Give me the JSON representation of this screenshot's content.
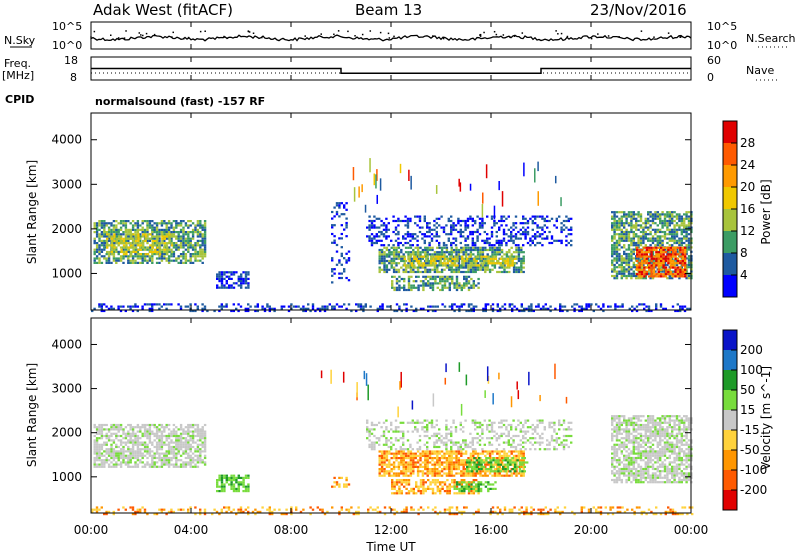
{
  "header": {
    "title": "Adak West (fitACF)",
    "beam": "Beam 13",
    "date": "23/Nov/2016"
  },
  "noise_panel": {
    "left_label": "N.Sky",
    "right_label": "N.Search",
    "tick_top": "10^5",
    "tick_bottom": "10^0"
  },
  "freq_panel": {
    "left_label_top": "Freq.",
    "left_label_units": "[MHz]",
    "left_ticks": [
      "18",
      "8"
    ],
    "right_label": "Nave",
    "right_ticks": [
      "60",
      "0"
    ],
    "cpid_label": "CPID",
    "cpid_text": "normalsound (fast) -157 RF"
  },
  "x_axis": {
    "label": "Time UT",
    "ticks": [
      "00:00",
      "04:00",
      "08:00",
      "12:00",
      "16:00",
      "20:00",
      "00:00"
    ]
  },
  "chart_data": [
    {
      "type": "heatmap",
      "id": "power",
      "ylabel": "Slant Range [km]",
      "yticks": [
        1000,
        2000,
        3000,
        4000
      ],
      "ylim": [
        180,
        4600
      ],
      "xlim_hours": [
        0,
        24
      ],
      "colorbar": {
        "label": "Power [dB]",
        "ticks": [
          "28",
          "24",
          "20",
          "16",
          "12",
          "8",
          "4"
        ],
        "colors": [
          "#e00000",
          "#ff5a00",
          "#ff9a00",
          "#f0c800",
          "#a8c43c",
          "#3c9c64",
          "#1e5aa0",
          "#0000ff"
        ]
      },
      "regions": [
        {
          "t0": 0.1,
          "t1": 4.6,
          "r0": 1250,
          "r1": 2200,
          "level": "mid",
          "density": 0.72
        },
        {
          "t0": 0.6,
          "t1": 3.2,
          "r0": 1450,
          "r1": 1900,
          "level": "high",
          "density": 0.55
        },
        {
          "t0": 5.0,
          "t1": 6.3,
          "r0": 700,
          "r1": 1050,
          "level": "low",
          "density": 0.7
        },
        {
          "t0": 9.6,
          "t1": 10.3,
          "r0": 800,
          "r1": 2600,
          "level": "low",
          "density": 0.25
        },
        {
          "t0": 11.0,
          "t1": 19.2,
          "r0": 1650,
          "r1": 2300,
          "level": "low",
          "density": 0.35
        },
        {
          "t0": 11.5,
          "t1": 17.3,
          "r0": 1050,
          "r1": 1600,
          "level": "mid",
          "density": 0.75
        },
        {
          "t0": 12.5,
          "t1": 17.0,
          "r0": 1200,
          "r1": 1400,
          "level": "high",
          "density": 0.55
        },
        {
          "t0": 12.0,
          "t1": 15.5,
          "r0": 650,
          "r1": 950,
          "level": "mid",
          "density": 0.6
        },
        {
          "t0": 20.8,
          "t1": 24.0,
          "r0": 900,
          "r1": 2400,
          "level": "mid",
          "density": 0.72
        },
        {
          "t0": 21.8,
          "t1": 23.8,
          "r0": 950,
          "r1": 1600,
          "level": "peak",
          "density": 0.8
        },
        {
          "t0": 0.0,
          "t1": 24.0,
          "r0": 180,
          "r1": 330,
          "level": "low",
          "density": 0.35
        }
      ]
    },
    {
      "type": "heatmap",
      "id": "velocity",
      "ylabel": "Slant Range [km]",
      "yticks": [
        1000,
        2000,
        3000,
        4000
      ],
      "ylim": [
        180,
        4600
      ],
      "xlim_hours": [
        0,
        24
      ],
      "colorbar": {
        "label": "Velocity [m s^-1]",
        "ticks": [
          "200",
          "100",
          "50",
          "15",
          "-15",
          "-50",
          "-100",
          "-200"
        ],
        "colors": [
          "#0a14c8",
          "#1e78c8",
          "#1e9a28",
          "#78dc3c",
          "#c8c8c8",
          "#ffd23c",
          "#ff9600",
          "#ff5a00",
          "#e00000"
        ]
      },
      "regions": [
        {
          "t0": 0.1,
          "t1": 4.6,
          "r0": 1250,
          "r1": 2200,
          "level": "zero",
          "density": 0.7
        },
        {
          "t0": 5.0,
          "t1": 6.3,
          "r0": 700,
          "r1": 1050,
          "level": "pos",
          "density": 0.7
        },
        {
          "t0": 9.6,
          "t1": 10.3,
          "r0": 800,
          "r1": 1000,
          "level": "neg",
          "density": 0.5
        },
        {
          "t0": 11.0,
          "t1": 19.2,
          "r0": 1650,
          "r1": 2300,
          "level": "zero",
          "density": 0.35
        },
        {
          "t0": 11.5,
          "t1": 17.3,
          "r0": 1050,
          "r1": 1600,
          "level": "neg",
          "density": 0.75
        },
        {
          "t0": 15.0,
          "t1": 17.4,
          "r0": 1150,
          "r1": 1450,
          "level": "pos",
          "density": 0.6
        },
        {
          "t0": 12.0,
          "t1": 15.5,
          "r0": 650,
          "r1": 950,
          "level": "neg",
          "density": 0.55
        },
        {
          "t0": 14.5,
          "t1": 16.2,
          "r0": 700,
          "r1": 900,
          "level": "pos",
          "density": 0.5
        },
        {
          "t0": 20.8,
          "t1": 24.0,
          "r0": 900,
          "r1": 2400,
          "level": "zero",
          "density": 0.7
        },
        {
          "t0": 0.0,
          "t1": 24.0,
          "r0": 180,
          "r1": 330,
          "level": "neg",
          "density": 0.3
        }
      ]
    }
  ],
  "freq_series": [
    {
      "t0": 0,
      "t1": 10,
      "freq_mhz": 13
    },
    {
      "t0": 10,
      "t1": 18,
      "freq_mhz": 10.5
    },
    {
      "t0": 18,
      "t1": 24,
      "freq_mhz": 13
    }
  ]
}
